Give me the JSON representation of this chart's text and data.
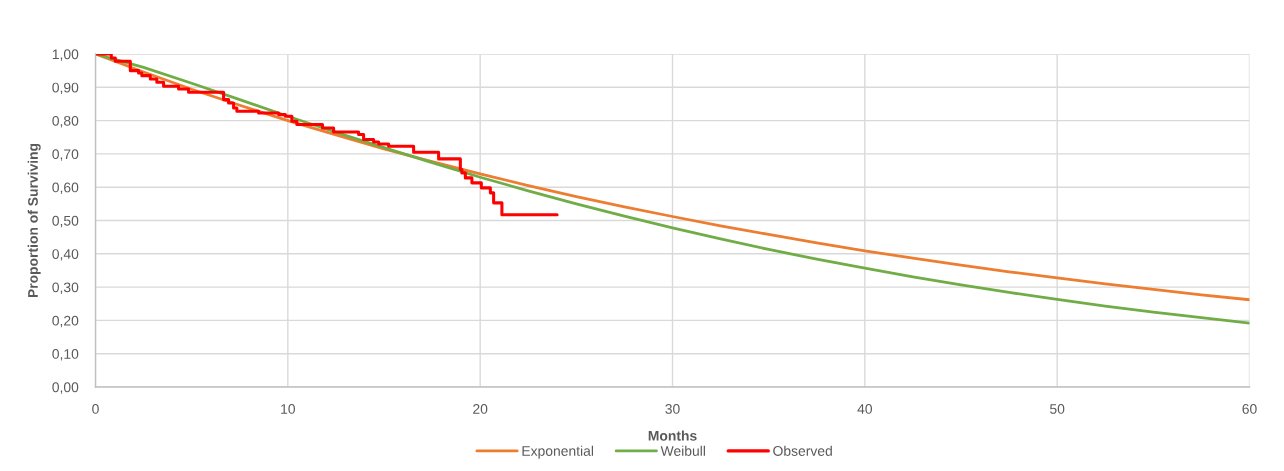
{
  "chart_data": {
    "type": "line",
    "xlabel": "Months",
    "ylabel": "Proportion of Surviving",
    "xlim": [
      0,
      60
    ],
    "xticks": [
      0,
      10,
      20,
      30,
      40,
      50,
      60
    ],
    "ylim": [
      0,
      1
    ],
    "yticks": [
      {
        "value": 0,
        "label": "0,00"
      },
      {
        "value": 0.1,
        "label": "0,10"
      },
      {
        "value": 0.2,
        "label": "0,20"
      },
      {
        "value": 0.3,
        "label": "0,30"
      },
      {
        "value": 0.4,
        "label": "0,40"
      },
      {
        "value": 0.5,
        "label": "0,50"
      },
      {
        "value": 0.6,
        "label": "0,60"
      },
      {
        "value": 0.7,
        "label": "0,70"
      },
      {
        "value": 0.8,
        "label": "0,80"
      },
      {
        "value": 0.9,
        "label": "0,90"
      },
      {
        "value": 1,
        "label": "1,00"
      }
    ],
    "grid": true,
    "legend": "bottom",
    "x": [
      0,
      2.5,
      5,
      7.5,
      10,
      12.5,
      15,
      17.5,
      20,
      22.5,
      25,
      27.5,
      30,
      32.5,
      35,
      37.5,
      40,
      42.5,
      45,
      47.5,
      50,
      52.5,
      55,
      57.5,
      60
    ],
    "series": [
      {
        "name": "Exponential",
        "color": "#ed7d31",
        "values": [
          1.0,
          0.946,
          0.894,
          0.846,
          0.8,
          0.757,
          0.715,
          0.677,
          0.64,
          0.605,
          0.572,
          0.541,
          0.512,
          0.484,
          0.458,
          0.433,
          0.409,
          0.387,
          0.366,
          0.346,
          0.328,
          0.31,
          0.293,
          0.277,
          0.262
        ]
      },
      {
        "name": "Weibull",
        "color": "#70ad47",
        "values": [
          1.0,
          0.96,
          0.912,
          0.863,
          0.813,
          0.765,
          0.719,
          0.674,
          0.63,
          0.589,
          0.55,
          0.513,
          0.478,
          0.445,
          0.413,
          0.384,
          0.357,
          0.331,
          0.307,
          0.284,
          0.263,
          0.243,
          0.225,
          0.208,
          0.192
        ]
      },
      {
        "name": "Observed",
        "type": "step",
        "color": "#ff0000",
        "x": [
          0,
          0.82,
          1.03,
          1.81,
          2.24,
          2.41,
          2.85,
          3.19,
          3.54,
          4.32,
          4.84,
          6.66,
          6.92,
          7.18,
          7.35,
          8.48,
          9.52,
          9.87,
          10.21,
          10.47,
          11.8,
          12.38,
          13.68,
          13.94,
          14.46,
          14.72,
          15.24,
          16.54,
          17.84,
          18.97,
          19.05,
          19.23,
          19.57,
          20.06,
          20.53,
          20.7,
          21.13,
          24
        ],
        "values": [
          1.0,
          0.988,
          0.978,
          0.95,
          0.943,
          0.935,
          0.925,
          0.915,
          0.903,
          0.895,
          0.885,
          0.863,
          0.853,
          0.838,
          0.828,
          0.823,
          0.818,
          0.813,
          0.798,
          0.788,
          0.778,
          0.766,
          0.758,
          0.743,
          0.736,
          0.73,
          0.723,
          0.705,
          0.685,
          0.653,
          0.643,
          0.628,
          0.613,
          0.598,
          0.583,
          0.553,
          0.517,
          0.517
        ]
      }
    ]
  }
}
